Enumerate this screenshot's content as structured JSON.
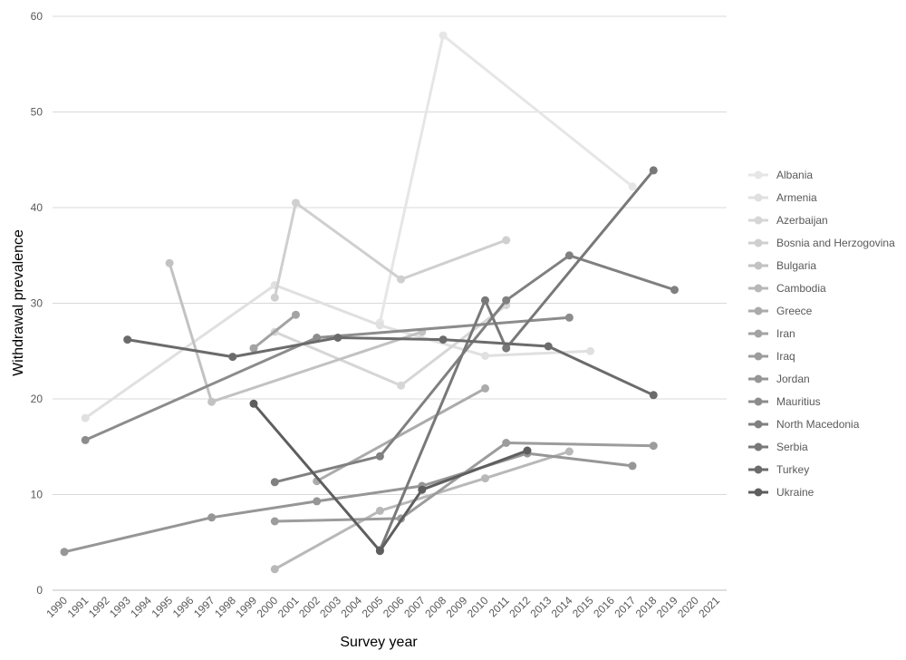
{
  "chart_data": {
    "type": "line",
    "xlabel": "Survey year",
    "ylabel": "Withdrawal prevalence",
    "xlim": [
      1990,
      2021
    ],
    "ylim": [
      0,
      60
    ],
    "x_ticks": [
      "1990",
      "1991",
      "1992",
      "1993",
      "1994",
      "1995",
      "1996",
      "1997",
      "1998",
      "1999",
      "2000",
      "2001",
      "2002",
      "2003",
      "2004",
      "2005",
      "2006",
      "2007",
      "2008",
      "2009",
      "2010",
      "2011",
      "2012",
      "2013",
      "2014",
      "2015",
      "2016",
      "2017",
      "2018",
      "2019",
      "2020",
      "2021"
    ],
    "y_ticks": [
      "0",
      "10",
      "20",
      "30",
      "40",
      "50",
      "60"
    ],
    "grid": "horizontal",
    "legend_position": "right",
    "series": [
      {
        "name": "Albania",
        "color": "#e6e6e6",
        "points": [
          [
            2005,
            28
          ],
          [
            2008,
            58
          ],
          [
            2017,
            42.2
          ]
        ]
      },
      {
        "name": "Armenia",
        "color": "#e0e0e0",
        "points": [
          [
            1991,
            18
          ],
          [
            2000,
            31.9
          ],
          [
            2005,
            27.7
          ],
          [
            2010,
            24.5
          ],
          [
            2015,
            25
          ]
        ]
      },
      {
        "name": "Azerbaijan",
        "color": "#d6d6d6",
        "points": [
          [
            2000,
            27
          ],
          [
            2006,
            21.4
          ],
          [
            2011,
            29.8
          ]
        ]
      },
      {
        "name": "Bosnia and Herzogovina",
        "color": "#cfcfcf",
        "points": [
          [
            2000,
            30.6
          ],
          [
            2001,
            40.5
          ],
          [
            2006,
            32.5
          ],
          [
            2011,
            36.6
          ]
        ]
      },
      {
        "name": "Bulgaria",
        "color": "#c2c2c2",
        "points": [
          [
            1995,
            34.2
          ],
          [
            1997,
            19.7
          ],
          [
            2007,
            27
          ]
        ]
      },
      {
        "name": "Cambodia",
        "color": "#b8b8b8",
        "points": [
          [
            2000,
            2.2
          ],
          [
            2005,
            8.3
          ],
          [
            2010,
            11.7
          ],
          [
            2014,
            14.5
          ]
        ]
      },
      {
        "name": "Greece",
        "color": "#ababab",
        "points": [
          [
            2002,
            11.4
          ],
          [
            2010,
            21.1
          ]
        ]
      },
      {
        "name": "Iran",
        "color": "#a3a3a3",
        "points": [
          [
            1999,
            25.3
          ],
          [
            2001,
            28.8
          ]
        ]
      },
      {
        "name": "Iraq",
        "color": "#9c9c9c",
        "points": [
          [
            2000,
            7.2
          ],
          [
            2006,
            7.5
          ],
          [
            2011,
            15.4
          ],
          [
            2018,
            15.1
          ]
        ]
      },
      {
        "name": "Jordan",
        "color": "#969696",
        "points": [
          [
            1990,
            4
          ],
          [
            1997,
            7.6
          ],
          [
            2002,
            9.3
          ],
          [
            2007,
            10.9
          ],
          [
            2012,
            14.3
          ],
          [
            2017,
            13
          ]
        ]
      },
      {
        "name": "Mauritius",
        "color": "#8c8c8c",
        "points": [
          [
            1991,
            15.7
          ],
          [
            2002,
            26.4
          ],
          [
            2014,
            28.5
          ]
        ]
      },
      {
        "name": "North Macedonia",
        "color": "#808080",
        "points": [
          [
            2000,
            11.3
          ],
          [
            2005,
            14
          ],
          [
            2011,
            30.3
          ],
          [
            2014,
            35
          ],
          [
            2019,
            31.4
          ]
        ]
      },
      {
        "name": "Serbia",
        "color": "#787878",
        "points": [
          [
            2005,
            4.2
          ],
          [
            2010,
            30.3
          ],
          [
            2011,
            25.3
          ],
          [
            2018,
            43.9
          ]
        ]
      },
      {
        "name": "Turkey",
        "color": "#6b6b6b",
        "points": [
          [
            1993,
            26.2
          ],
          [
            1998,
            24.4
          ],
          [
            2003,
            26.4
          ],
          [
            2008,
            26.2
          ],
          [
            2013,
            25.5
          ],
          [
            2018,
            20.4
          ]
        ]
      },
      {
        "name": "Ukraine",
        "color": "#5e5e5e",
        "points": [
          [
            1999,
            19.5
          ],
          [
            2005,
            4.1
          ],
          [
            2007,
            10.5
          ],
          [
            2012,
            14.6
          ]
        ]
      }
    ]
  }
}
